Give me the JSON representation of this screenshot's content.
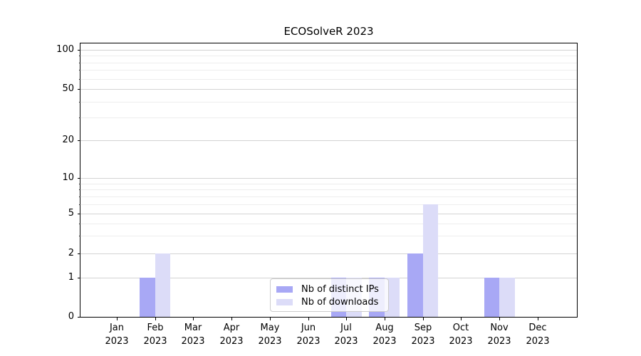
{
  "chart_data": {
    "type": "bar",
    "title": "ECOSolveR 2023",
    "xlabel": "",
    "ylabel": "",
    "categories": [
      "Jan",
      "Feb",
      "Mar",
      "Apr",
      "May",
      "Jun",
      "Jul",
      "Aug",
      "Sep",
      "Oct",
      "Nov",
      "Dec"
    ],
    "year_label": "2023",
    "series": [
      {
        "name": "Nb of distinct IPs",
        "color": "#a8a8f5",
        "values": [
          0,
          1,
          0,
          0,
          0,
          0,
          1,
          1,
          2,
          0,
          1,
          0
        ]
      },
      {
        "name": "Nb of downloads",
        "color": "#dcdcf8",
        "values": [
          0,
          2,
          0,
          0,
          0,
          0,
          1,
          1,
          6,
          0,
          1,
          0
        ]
      }
    ],
    "y_ticks": [
      0,
      1,
      2,
      5,
      10,
      20,
      50,
      100
    ],
    "y_minor_ticks": [
      3,
      4,
      6,
      7,
      8,
      9,
      30,
      40,
      60,
      70,
      80,
      90
    ],
    "scale": "log-like (0 linear to 1, log above)",
    "ylim": [
      0,
      130
    ],
    "grid": "horizontal major+minor",
    "legend_position": "lower center"
  }
}
